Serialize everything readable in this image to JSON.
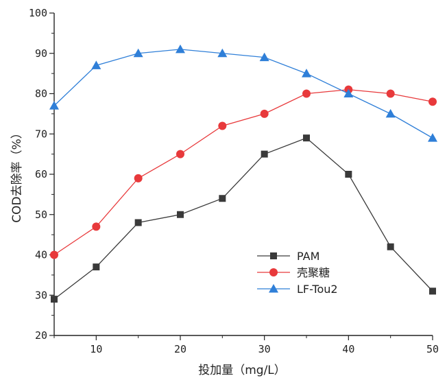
{
  "chart_data": {
    "type": "line",
    "xlabel": "投加量（mg/L）",
    "ylabel": "COD去除率（%）",
    "xlim": [
      5,
      50
    ],
    "ylim": [
      20,
      100
    ],
    "xticks": [
      10,
      20,
      30,
      40,
      50
    ],
    "yticks": [
      20,
      30,
      40,
      50,
      60,
      70,
      80,
      90,
      100
    ],
    "grid": false,
    "legend_position": "bottom-right",
    "x": [
      5,
      10,
      15,
      20,
      25,
      30,
      35,
      40,
      45,
      50
    ],
    "series": [
      {
        "name": "PAM",
        "color": "#3a3a3a",
        "marker": "square",
        "values": [
          29,
          37,
          48,
          50,
          54,
          65,
          69,
          60,
          42,
          31
        ]
      },
      {
        "name": "壳聚糖",
        "color": "#e8393b",
        "marker": "circle",
        "values": [
          40,
          47,
          59,
          65,
          72,
          75,
          80,
          81,
          80,
          78
        ]
      },
      {
        "name": "LF-Tou2",
        "color": "#2f7fd8",
        "marker": "triangle",
        "values": [
          77,
          87,
          90,
          91,
          90,
          89,
          85,
          80,
          75,
          69
        ]
      }
    ]
  }
}
